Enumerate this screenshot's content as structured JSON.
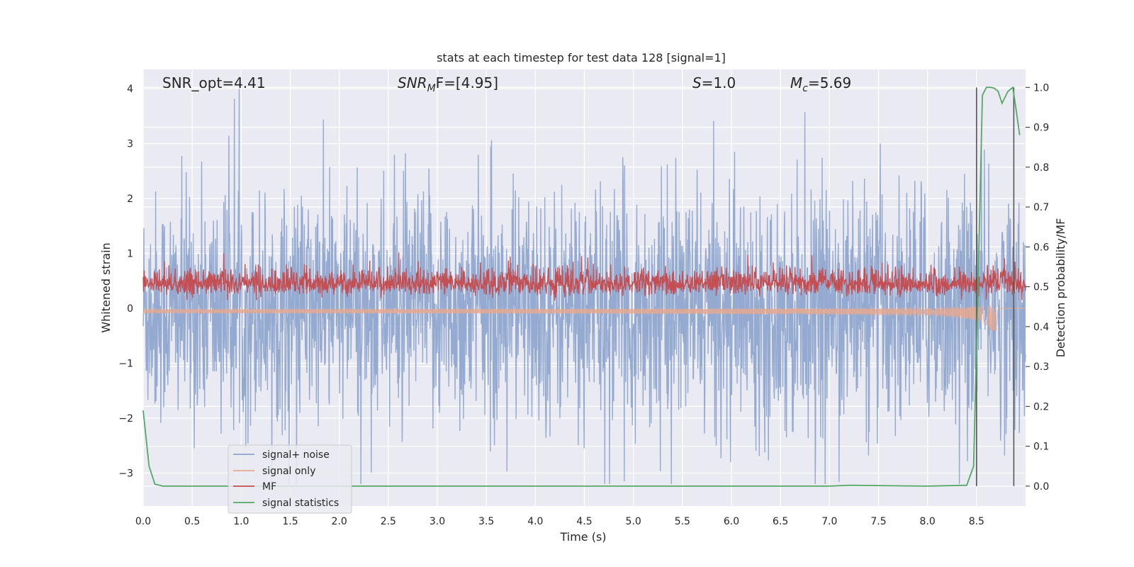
{
  "chart_data": {
    "type": "line",
    "title": "stats at each timestep for test data 128 [signal=1]",
    "xlabel": "Time (s)",
    "ylabel": "Whitened strain",
    "ylabel_right": "Detection probability/MF",
    "xlim": [
      0,
      9
    ],
    "ylim": [
      -3.6,
      4.35
    ],
    "ylim_right": [
      -0.05,
      1.045
    ],
    "x_ticks": [
      "0.0",
      "0.5",
      "1.0",
      "1.5",
      "2.0",
      "2.5",
      "3.0",
      "3.5",
      "4.0",
      "4.5",
      "5.0",
      "5.5",
      "6.0",
      "6.5",
      "7.0",
      "7.5",
      "8.0",
      "8.5"
    ],
    "y_ticks": [
      "−3",
      "−2",
      "−1",
      "0",
      "1",
      "2",
      "3",
      "4"
    ],
    "y_ticks_right": [
      "0.0",
      "0.1",
      "0.2",
      "0.3",
      "0.4",
      "0.5",
      "0.6",
      "0.7",
      "0.8",
      "0.9",
      "1.0"
    ],
    "grid": true,
    "legend_position": "lower-left",
    "annotations": {
      "snr_opt": "SNR_opt=4.41",
      "snr_mf_base": "SNR",
      "snr_mf_sub": "M",
      "snr_mf_tail": "F=[4.95]",
      "s_value": "=1.0",
      "s_symbol": "S",
      "mc_symbol": "M",
      "mc_sub": "c",
      "mc_value": "=5.69"
    },
    "vertical_markers": [
      8.5,
      8.88
    ],
    "series": [
      {
        "name": "signal+ noise",
        "color": "#8fa6cf",
        "kind": "noise",
        "amplitude_range": [
          -3.2,
          4.0
        ]
      },
      {
        "name": "signal only",
        "color": "#e8a98f",
        "kind": "chirp",
        "merger_time": 8.7
      },
      {
        "name": "MF",
        "color": "#c44e52",
        "kind": "mf",
        "mean_right_axis": 0.5
      },
      {
        "name": "signal statistics",
        "color": "#55a868",
        "kind": "probability",
        "x": [
          0.0,
          0.06,
          0.12,
          0.2,
          1.0,
          2.0,
          3.0,
          4.0,
          5.0,
          6.0,
          7.0,
          7.2,
          8.0,
          8.4,
          8.47,
          8.52,
          8.56,
          8.6,
          8.64,
          8.68,
          8.72,
          8.76,
          8.82,
          8.87,
          8.9,
          8.94
        ],
        "y": [
          0.19,
          0.05,
          0.005,
          0.0,
          0.0,
          0.0,
          0.0,
          0.0,
          0.0,
          0.0,
          0.0,
          0.002,
          0.0,
          0.002,
          0.05,
          0.55,
          0.98,
          1.0,
          1.0,
          0.998,
          0.99,
          0.96,
          0.99,
          1.0,
          0.95,
          0.88
        ]
      }
    ]
  }
}
